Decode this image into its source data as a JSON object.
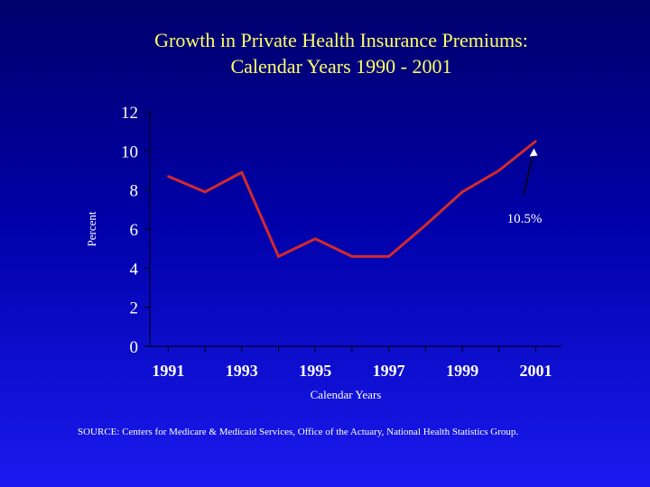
{
  "colors": {
    "background": "#0000a8",
    "title": "#ffff66",
    "line": "#d42a2a",
    "text": "#ffffff"
  },
  "chart_data": {
    "type": "line",
    "title": [
      "Growth in Private Health Insurance Premiums:",
      "Calendar Years 1990 - 2001"
    ],
    "xlabel": "Calendar Years",
    "ylabel": "Percent",
    "ylim": [
      0,
      12
    ],
    "yticks": [
      0,
      2,
      4,
      6,
      8,
      10,
      12
    ],
    "xlim": [
      1990.5,
      2001.7
    ],
    "xtick_labels": [
      "1991",
      "1993",
      "1995",
      "1997",
      "1999",
      "2001"
    ],
    "series": [
      {
        "name": "Private Health Insurance Premium Growth",
        "x": [
          1991,
          1992,
          1993,
          1994,
          1995,
          1996,
          1997,
          1998,
          1999,
          2000,
          2001
        ],
        "values": [
          8.7,
          7.9,
          8.9,
          4.6,
          5.5,
          4.6,
          4.6,
          6.2,
          7.9,
          9.0,
          10.5
        ]
      }
    ],
    "annotation": {
      "text": "10.5%",
      "x": 2001,
      "y": 10.5
    }
  },
  "source": "SOURCE: Centers for Medicare & Medicaid Services, Office of the Actuary, National  Health Statistics Group."
}
